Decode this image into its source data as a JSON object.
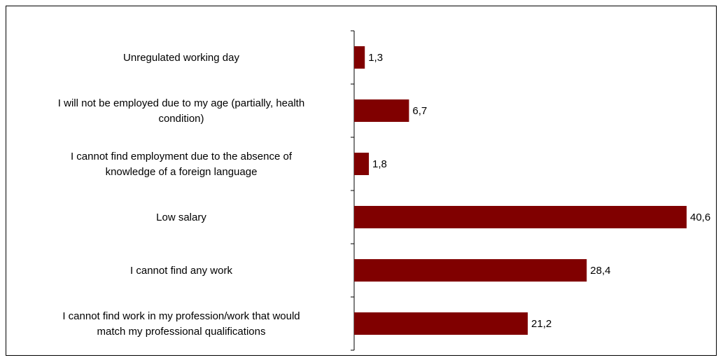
{
  "chart_data": {
    "type": "bar",
    "orientation": "horizontal",
    "categories": [
      [
        "Unregulated working day"
      ],
      [
        "I will not be employed due to my age (partially, health",
        "condition)"
      ],
      [
        "I cannot find employment due to the absence of",
        "knowledge of a foreign language"
      ],
      [
        "Low salary"
      ],
      [
        "I cannot find any work"
      ],
      [
        "I cannot find work in my profession/work that would",
        "match my professional qualifications"
      ]
    ],
    "values": [
      1.3,
      6.7,
      1.8,
      40.6,
      28.4,
      21.2
    ],
    "value_labels": [
      "1,3",
      "6,7",
      "1,8",
      "40,6",
      "28,4",
      "21,2"
    ],
    "bar_color": "#800000",
    "xlim": [
      0,
      40.6
    ],
    "grid": false,
    "legend": "none"
  }
}
